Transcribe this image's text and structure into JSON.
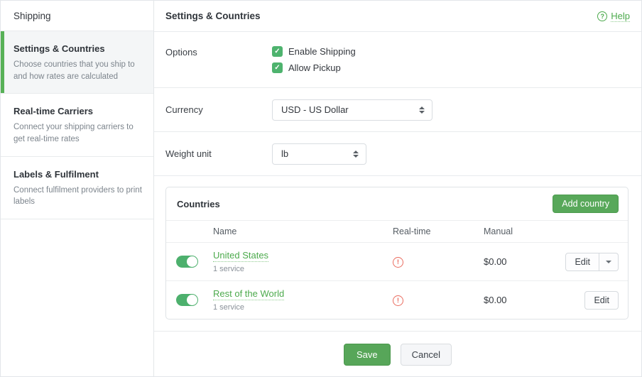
{
  "sidebar": {
    "title": "Shipping",
    "items": [
      {
        "label": "Settings & Countries",
        "description": "Choose countries that you ship to and how rates are calculated",
        "active": true
      },
      {
        "label": "Real-time Carriers",
        "description": "Connect your shipping carriers to get real-time rates",
        "active": false
      },
      {
        "label": "Labels & Fulfilment",
        "description": "Connect fulfilment providers to print labels",
        "active": false
      }
    ]
  },
  "header": {
    "title": "Settings & Countries",
    "help_label": "Help"
  },
  "form": {
    "options": {
      "label": "Options",
      "checkboxes": [
        {
          "label": "Enable Shipping",
          "checked": true
        },
        {
          "label": "Allow Pickup",
          "checked": true
        }
      ]
    },
    "currency": {
      "label": "Currency",
      "value": "USD - US Dollar"
    },
    "weight_unit": {
      "label": "Weight unit",
      "value": "lb"
    }
  },
  "countries": {
    "title": "Countries",
    "add_button_label": "Add country",
    "columns": {
      "name": "Name",
      "realtime": "Real-time",
      "manual": "Manual"
    },
    "rows": [
      {
        "name": "United States",
        "services": "1 service",
        "enabled": true,
        "realtime_status": "warning",
        "manual": "$0.00",
        "edit_label": "Edit",
        "has_dropdown": true
      },
      {
        "name": "Rest of the World",
        "services": "1 service",
        "enabled": true,
        "realtime_status": "warning",
        "manual": "$0.00",
        "edit_label": "Edit",
        "has_dropdown": false
      }
    ]
  },
  "footer": {
    "save_label": "Save",
    "cancel_label": "Cancel"
  },
  "icons": {
    "check": "✓",
    "help": "?",
    "warning": "!"
  },
  "colors": {
    "accent_green": "#57a659",
    "toggle_green": "#4db06d",
    "link_green": "#4caa4c",
    "warning_red": "#ea6c5f",
    "active_item_bg": "#f4f6f7",
    "divider": "#e8ebed"
  }
}
